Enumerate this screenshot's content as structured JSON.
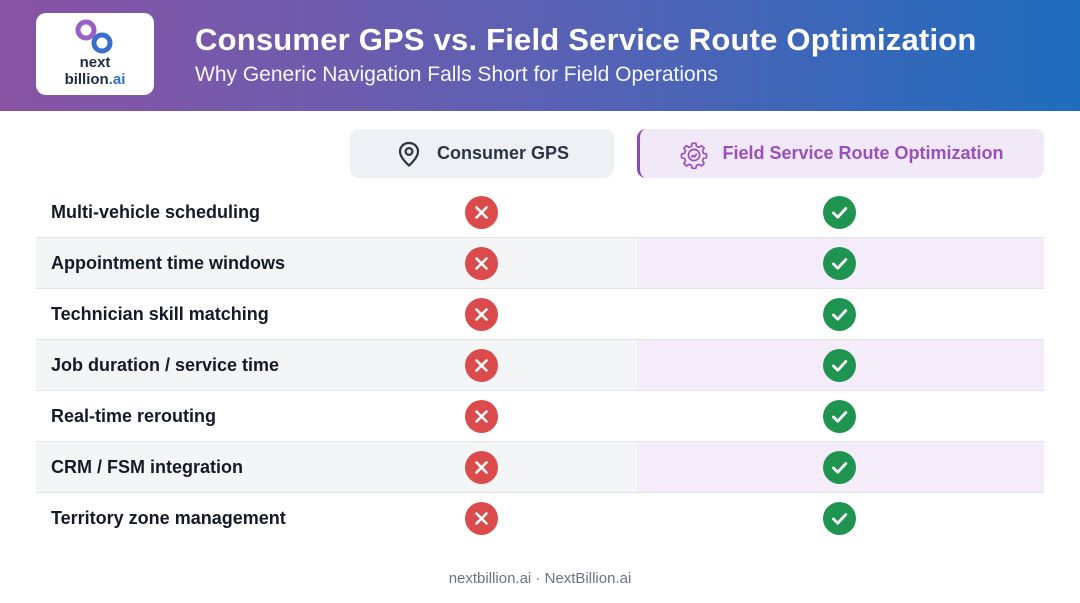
{
  "header": {
    "title": "Consumer GPS vs. Field Service Route Optimization",
    "subtitle": "Why Generic Navigation Falls Short for Field Operations",
    "logo": {
      "line1": "next",
      "line2_main": "billion",
      "line2_accent": ".ai"
    }
  },
  "columns": {
    "gps": {
      "label": "Consumer GPS",
      "icon": "map-pin-icon"
    },
    "fsro": {
      "label": "Field Service Route Optimization",
      "icon": "gear-route-icon"
    }
  },
  "rows": [
    {
      "label": "Multi-vehicle scheduling",
      "consumer_gps": "no",
      "field_service": "yes"
    },
    {
      "label": "Appointment time windows",
      "consumer_gps": "no",
      "field_service": "yes"
    },
    {
      "label": "Technician skill matching",
      "consumer_gps": "no",
      "field_service": "yes"
    },
    {
      "label": "Job duration / service time",
      "consumer_gps": "no",
      "field_service": "yes"
    },
    {
      "label": "Real-time rerouting",
      "consumer_gps": "no",
      "field_service": "yes"
    },
    {
      "label": "CRM / FSM integration",
      "consumer_gps": "no",
      "field_service": "yes"
    },
    {
      "label": "Territory zone management",
      "consumer_gps": "no",
      "field_service": "yes"
    }
  ],
  "colors": {
    "header_gradient": [
      "#8a53a4",
      "#5b61b4",
      "#1f6cbd"
    ],
    "no": "#dc4b4b",
    "yes": "#1f9451",
    "accent_purple": "#9a4fbd"
  },
  "footer": {
    "text": "nextbillion.ai · NextBillion.ai"
  }
}
